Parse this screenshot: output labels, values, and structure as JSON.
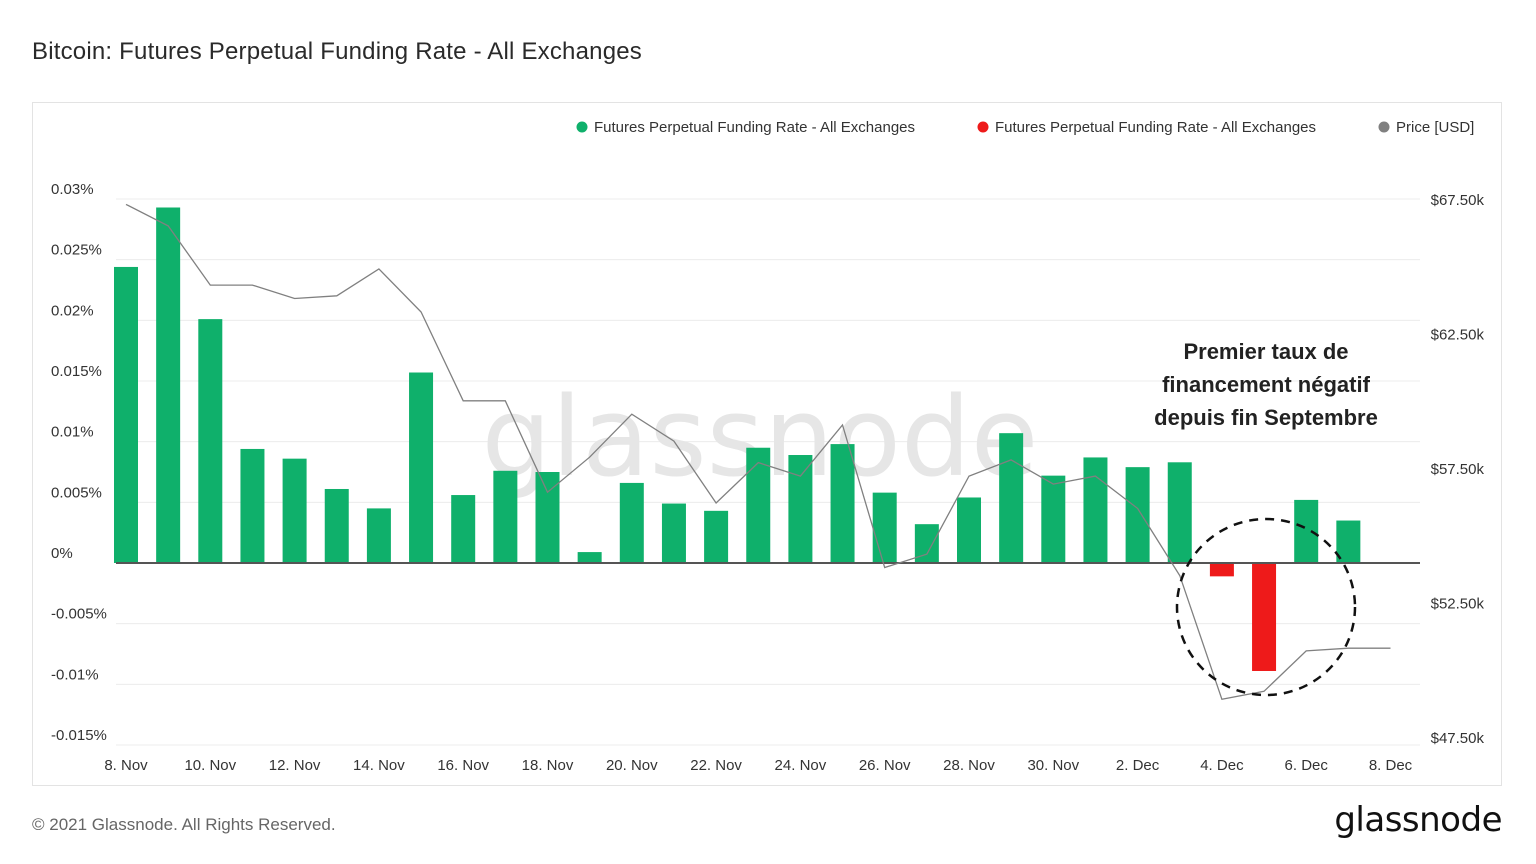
{
  "title": "Bitcoin: Futures Perpetual Funding Rate - All Exchanges",
  "footer": {
    "copyright": "© 2021 Glassnode. All Rights Reserved.",
    "brand": "glassnode"
  },
  "watermark": "glassnode",
  "colors": {
    "positive": "#0fb06b",
    "negative": "#ee1a1a",
    "price": "#808080",
    "zero_line": "#555555",
    "grid": "#ececec"
  },
  "legend": [
    {
      "label": "Futures Perpetual Funding Rate - All Exchanges",
      "color": "#0fb06b"
    },
    {
      "label": "Futures Perpetual Funding Rate - All Exchanges",
      "color": "#ee1a1a"
    },
    {
      "label": "Price [USD]",
      "color": "#808080"
    }
  ],
  "annotation": {
    "lines": [
      "Premier taux de",
      "financement négatif",
      "depuis fin Septembre"
    ]
  },
  "chart_data": {
    "type": "bar",
    "title": "Bitcoin: Futures Perpetual Funding Rate - All Exchanges",
    "x_dates": [
      "8 Nov",
      "9 Nov",
      "10 Nov",
      "11 Nov",
      "12 Nov",
      "13 Nov",
      "14 Nov",
      "15 Nov",
      "16 Nov",
      "17 Nov",
      "18 Nov",
      "19 Nov",
      "20 Nov",
      "21 Nov",
      "22 Nov",
      "23 Nov",
      "24 Nov",
      "25 Nov",
      "26 Nov",
      "27 Nov",
      "28 Nov",
      "29 Nov",
      "30 Nov",
      "1 Dec",
      "2 Dec",
      "3 Dec",
      "4 Dec",
      "5 Dec",
      "6 Dec",
      "7 Dec",
      "8 Dec"
    ],
    "x_tick_labels": [
      "8. Nov",
      "10. Nov",
      "12. Nov",
      "14. Nov",
      "16. Nov",
      "18. Nov",
      "20. Nov",
      "22. Nov",
      "24. Nov",
      "26. Nov",
      "28. Nov",
      "30. Nov",
      "2. Dec",
      "4. Dec",
      "6. Dec",
      "8. Dec"
    ],
    "funding_rate_pct": [
      0.0244,
      0.0293,
      0.0201,
      0.0094,
      0.0086,
      0.0061,
      0.0045,
      0.0157,
      0.0056,
      0.0076,
      0.0075,
      0.0009,
      0.0066,
      0.0049,
      0.0043,
      0.0095,
      0.0089,
      0.0098,
      0.0058,
      0.0032,
      0.0054,
      0.0107,
      0.0072,
      0.0087,
      0.0079,
      0.0083,
      -0.0011,
      -0.0089,
      0.0052,
      0.0035,
      null
    ],
    "price_usd": [
      67300,
      66500,
      64300,
      64300,
      63800,
      63900,
      64900,
      63300,
      60000,
      60000,
      56600,
      57900,
      59500,
      58500,
      56200,
      57700,
      57200,
      59100,
      53800,
      54300,
      57200,
      57800,
      56900,
      57200,
      56000,
      53500,
      48900,
      49200,
      50700,
      50800,
      50800
    ],
    "y_left": {
      "ticks": [
        "0.03%",
        "0.025%",
        "0.02%",
        "0.015%",
        "0.01%",
        "0.005%",
        "0%",
        "-0.005%",
        "-0.01%",
        "-0.015%"
      ],
      "min": -0.015,
      "max": 0.03
    },
    "y_right": {
      "ticks": [
        "$67.50k",
        "$62.50k",
        "$57.50k",
        "$52.50k",
        "$47.50k"
      ],
      "min": 47500,
      "max": 67500
    },
    "series": [
      {
        "name": "Futures Perpetual Funding Rate - All Exchanges",
        "sign": "positive"
      },
      {
        "name": "Futures Perpetual Funding Rate - All Exchanges",
        "sign": "negative"
      },
      {
        "name": "Price [USD]",
        "sign": "line"
      }
    ]
  }
}
